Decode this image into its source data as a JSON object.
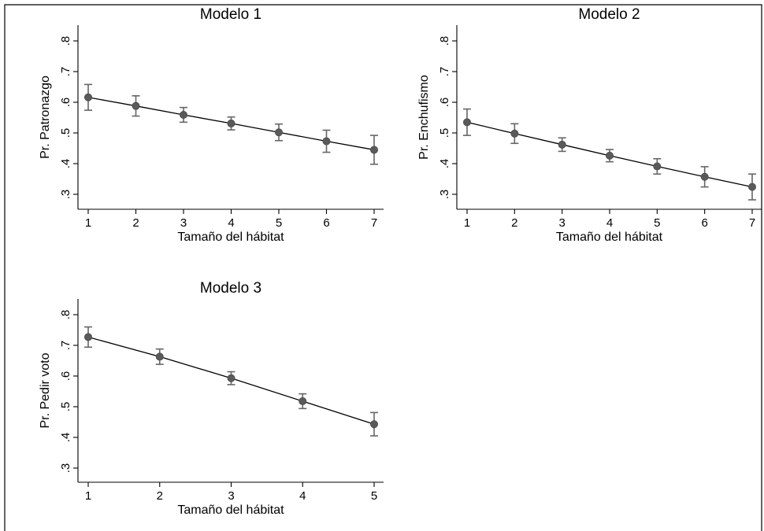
{
  "colors": {
    "marker": "#5a5a5a",
    "error_bar": "#666666",
    "line": "#000000"
  },
  "chart_data": [
    {
      "type": "line",
      "title": "Modelo 1",
      "xlabel": "Tamaño del hábitat",
      "ylabel": "Pr. Patronazgo",
      "x": [
        1,
        2,
        3,
        4,
        5,
        6,
        7
      ],
      "xticks": [
        "1",
        "2",
        "3",
        "4",
        "5",
        "6",
        "7"
      ],
      "ylim": [
        0.3,
        0.8
      ],
      "yticks": [
        ".3",
        ".4",
        ".5",
        ".6",
        ".7",
        ".8"
      ],
      "values": [
        0.616,
        0.588,
        0.559,
        0.531,
        0.502,
        0.473,
        0.445
      ],
      "ci_low": [
        0.574,
        0.555,
        0.535,
        0.51,
        0.475,
        0.437,
        0.398
      ],
      "ci_high": [
        0.658,
        0.621,
        0.583,
        0.552,
        0.529,
        0.509,
        0.492
      ],
      "grid": false
    },
    {
      "type": "line",
      "title": "Modelo 2",
      "xlabel": "Tamaño del hábitat",
      "ylabel": "Pr. Enchufismo",
      "x": [
        1,
        2,
        3,
        4,
        5,
        6,
        7
      ],
      "xticks": [
        "1",
        "2",
        "3",
        "4",
        "5",
        "6",
        "7"
      ],
      "ylim": [
        0.3,
        0.8
      ],
      "yticks": [
        ".3",
        ".4",
        ".5",
        ".6",
        ".7",
        ".8"
      ],
      "values": [
        0.535,
        0.498,
        0.462,
        0.426,
        0.391,
        0.357,
        0.324
      ],
      "ci_low": [
        0.492,
        0.466,
        0.44,
        0.406,
        0.366,
        0.324,
        0.282
      ],
      "ci_high": [
        0.578,
        0.53,
        0.484,
        0.446,
        0.416,
        0.39,
        0.366
      ],
      "grid": false
    },
    {
      "type": "line",
      "title": "Modelo 3",
      "xlabel": "Tamaño del hábitat",
      "ylabel": "Pr. Pedir voto",
      "x": [
        1,
        2,
        3,
        4,
        5
      ],
      "xticks": [
        "1",
        "2",
        "3",
        "4",
        "5"
      ],
      "ylim": [
        0.3,
        0.8
      ],
      "yticks": [
        ".3",
        ".4",
        ".5",
        ".6",
        ".7",
        ".8"
      ],
      "values": [
        0.727,
        0.663,
        0.593,
        0.518,
        0.443
      ],
      "ci_low": [
        0.694,
        0.638,
        0.572,
        0.494,
        0.405
      ],
      "ci_high": [
        0.76,
        0.688,
        0.614,
        0.542,
        0.481
      ],
      "grid": false
    }
  ]
}
